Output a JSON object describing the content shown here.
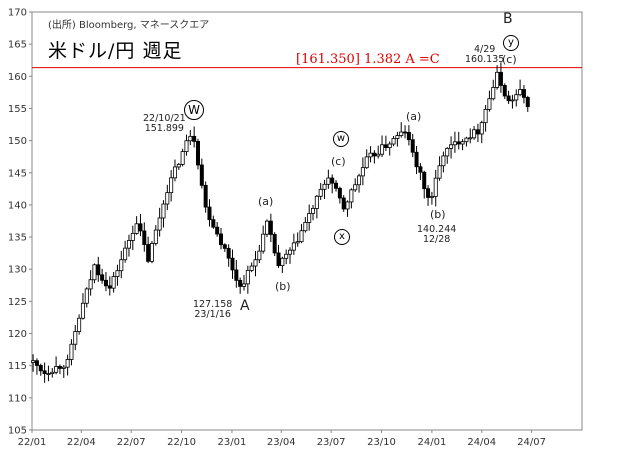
{
  "header": {
    "source": "(出所)  Bloomberg, マネースクエア",
    "title": "米ドル/円   週足",
    "fib_label": "[161.350]  1.382 A =C"
  },
  "annotations": {
    "w_date": "22/10/21",
    "w_price": "151.899",
    "w_wave": "W",
    "a_price": "127.158",
    "a_date": "23/1/16",
    "a_wave": "A",
    "a1": "(a)",
    "b1": "(b)",
    "w2": "w",
    "c1": "(c)",
    "x_wave": "x",
    "a2": "(a)",
    "b2": "(b)",
    "b2_price": "140.244",
    "b2_date": "12/28",
    "b_wave": "B",
    "y_date": "4/29",
    "y_price": "160.135",
    "y_wave": "y",
    "c2": "(c)"
  },
  "chart_data": {
    "type": "candlestick",
    "title": "米ドル/円 週足",
    "xlabel": "",
    "ylabel": "",
    "x_ticks": [
      "22/01",
      "22/04",
      "22/07",
      "22/10",
      "23/01",
      "23/04",
      "23/07",
      "23/10",
      "24/01",
      "24/04",
      "24/07"
    ],
    "y_ticks": [
      105,
      110,
      115,
      120,
      125,
      130,
      135,
      140,
      145,
      150,
      155,
      160,
      165,
      170
    ],
    "ylim": [
      105,
      170
    ],
    "reference_line": {
      "value": 161.35,
      "color": "#e00000"
    },
    "anchors": [
      {
        "date": "2022-01-03",
        "value": 115.5
      },
      {
        "date": "2022-01-24",
        "value": 114.0
      },
      {
        "date": "2022-03-07",
        "value": 115.5
      },
      {
        "date": "2022-03-28",
        "value": 122.5
      },
      {
        "date": "2022-04-25",
        "value": 130.5
      },
      {
        "date": "2022-05-23",
        "value": 127.0
      },
      {
        "date": "2022-07-11",
        "value": 137.5
      },
      {
        "date": "2022-08-01",
        "value": 131.5
      },
      {
        "date": "2022-09-05",
        "value": 142.5
      },
      {
        "date": "2022-10-21",
        "value": 151.9
      },
      {
        "date": "2022-11-14",
        "value": 139.5
      },
      {
        "date": "2022-12-19",
        "value": 133.0
      },
      {
        "date": "2023-01-16",
        "value": 127.2
      },
      {
        "date": "2023-02-13",
        "value": 131.5
      },
      {
        "date": "2023-03-06",
        "value": 137.0
      },
      {
        "date": "2023-03-27",
        "value": 130.5
      },
      {
        "date": "2023-04-24",
        "value": 133.5
      },
      {
        "date": "2023-06-26",
        "value": 144.5
      },
      {
        "date": "2023-07-24",
        "value": 139.5
      },
      {
        "date": "2023-09-04",
        "value": 147.0
      },
      {
        "date": "2023-11-13",
        "value": 151.5
      },
      {
        "date": "2023-12-28",
        "value": 140.3
      },
      {
        "date": "2024-01-22",
        "value": 148.0
      },
      {
        "date": "2024-02-19",
        "value": 150.0
      },
      {
        "date": "2024-03-25",
        "value": 151.5
      },
      {
        "date": "2024-04-29",
        "value": 160.1
      },
      {
        "date": "2024-05-20",
        "value": 156.0
      },
      {
        "date": "2024-06-10",
        "value": 157.5
      },
      {
        "date": "2024-06-24",
        "value": 155.8
      }
    ],
    "grid": false,
    "legend": "none"
  }
}
